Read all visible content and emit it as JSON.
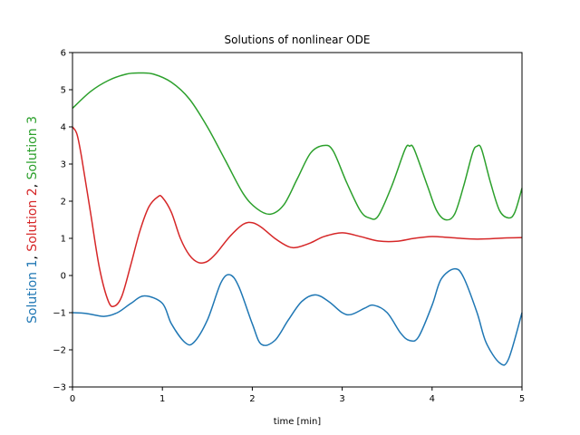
{
  "chart_data": {
    "type": "line",
    "title": "Solutions of nonlinear ODE",
    "xlabel": "time [min]",
    "ylabel_parts": [
      {
        "text": "Solution 1",
        "color": "#1f77b4"
      },
      {
        "text": ", ",
        "color": "#000000"
      },
      {
        "text": "Solution 2",
        "color": "#d62728"
      },
      {
        "text": ", ",
        "color": "#000000"
      },
      {
        "text": "Solution 3",
        "color": "#2ca02c"
      }
    ],
    "xlim": [
      0,
      5
    ],
    "ylim": [
      -3,
      6
    ],
    "xticks": [
      "0",
      "1",
      "2",
      "3",
      "4",
      "5"
    ],
    "yticks": [
      "−3",
      "−2",
      "−1",
      "0",
      "1",
      "2",
      "3",
      "4",
      "5",
      "6"
    ],
    "grid": false,
    "series": [
      {
        "color": "#1f77b4",
        "x": [
          0,
          0.15,
          0.35,
          0.5,
          0.65,
          0.8,
          1.0,
          1.1,
          1.25,
          1.35,
          1.5,
          1.65,
          1.75,
          1.85,
          2.0,
          2.1,
          2.25,
          2.4,
          2.55,
          2.7,
          2.85,
          3.0,
          3.1,
          3.25,
          3.35,
          3.5,
          3.65,
          3.75,
          3.85,
          4.0,
          4.1,
          4.25,
          4.35,
          4.5,
          4.6,
          4.75,
          4.85,
          5.0
        ],
        "y": [
          -1.0,
          -1.02,
          -1.1,
          -1.0,
          -0.75,
          -0.55,
          -0.75,
          -1.3,
          -1.8,
          -1.8,
          -1.2,
          -0.2,
          0.02,
          -0.3,
          -1.3,
          -1.85,
          -1.75,
          -1.2,
          -0.7,
          -0.52,
          -0.7,
          -1.0,
          -1.05,
          -0.88,
          -0.8,
          -1.0,
          -1.55,
          -1.75,
          -1.65,
          -0.8,
          -0.1,
          0.18,
          -0.05,
          -1.0,
          -1.8,
          -2.35,
          -2.25,
          -1.0
        ]
      },
      {
        "color": "#d62728",
        "x": [
          0,
          0.05,
          0.1,
          0.2,
          0.3,
          0.4,
          0.47,
          0.55,
          0.65,
          0.75,
          0.85,
          0.95,
          1.0,
          1.1,
          1.2,
          1.3,
          1.4,
          1.5,
          1.6,
          1.75,
          1.9,
          2.0,
          2.1,
          2.25,
          2.4,
          2.5,
          2.65,
          2.8,
          3.0,
          3.2,
          3.4,
          3.6,
          3.8,
          4.0,
          4.2,
          4.5,
          4.8,
          5.0
        ],
        "y": [
          4.0,
          3.8,
          3.2,
          1.7,
          0.2,
          -0.7,
          -0.82,
          -0.55,
          0.3,
          1.2,
          1.85,
          2.12,
          2.1,
          1.7,
          1.0,
          0.55,
          0.35,
          0.38,
          0.6,
          1.05,
          1.38,
          1.42,
          1.3,
          1.0,
          0.78,
          0.76,
          0.88,
          1.05,
          1.15,
          1.05,
          0.93,
          0.92,
          1.0,
          1.05,
          1.02,
          0.98,
          1.01,
          1.02
        ]
      },
      {
        "color": "#2ca02c",
        "x": [
          0,
          0.2,
          0.4,
          0.6,
          0.75,
          0.9,
          1.1,
          1.3,
          1.5,
          1.7,
          1.9,
          2.05,
          2.2,
          2.35,
          2.5,
          2.65,
          2.8,
          2.9,
          3.05,
          3.2,
          3.3,
          3.4,
          3.55,
          3.7,
          3.75,
          3.8,
          3.95,
          4.05,
          4.15,
          4.25,
          4.35,
          4.45,
          4.5,
          4.55,
          4.65,
          4.75,
          4.85,
          4.92,
          5.0
        ],
        "y": [
          4.5,
          4.95,
          5.25,
          5.42,
          5.45,
          5.42,
          5.2,
          4.75,
          4.0,
          3.1,
          2.2,
          1.8,
          1.65,
          1.9,
          2.6,
          3.3,
          3.5,
          3.35,
          2.5,
          1.75,
          1.55,
          1.6,
          2.4,
          3.4,
          3.48,
          3.4,
          2.4,
          1.75,
          1.5,
          1.65,
          2.4,
          3.3,
          3.48,
          3.4,
          2.5,
          1.75,
          1.55,
          1.7,
          2.35
        ]
      }
    ]
  }
}
